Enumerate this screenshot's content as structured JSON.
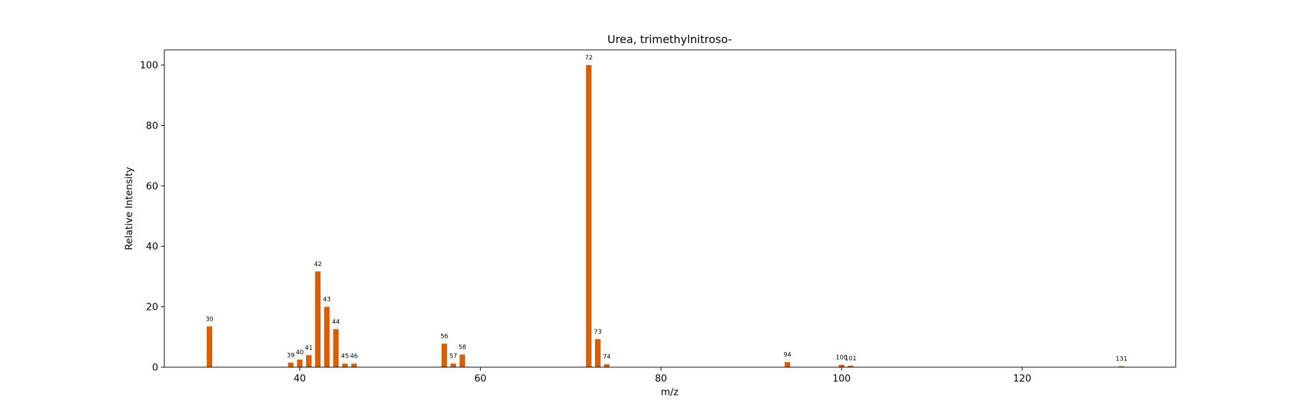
{
  "chart_data": {
    "type": "bar",
    "title": "Urea, trimethylnitroso-",
    "xlabel": "m/z",
    "ylabel": "Relative Intensity",
    "xlim": [
      25,
      137
    ],
    "ylim": [
      0,
      105
    ],
    "xticks": [
      40,
      60,
      80,
      100,
      120
    ],
    "yticks": [
      0,
      20,
      40,
      60,
      80,
      100
    ],
    "grid": false,
    "bar_color": "#d95f02",
    "series": [
      {
        "x": [
          30,
          39,
          40,
          41,
          42,
          43,
          44,
          45,
          46,
          56,
          57,
          58,
          72,
          73,
          74,
          94,
          100,
          101,
          131
        ],
        "values": [
          13.5,
          1.5,
          2.5,
          4,
          31.7,
          20,
          12.6,
          1.2,
          1.2,
          7.8,
          1.2,
          4.2,
          100,
          9.3,
          1,
          1.7,
          0.8,
          0.5,
          0.3
        ],
        "labels": [
          "30",
          "39",
          "40",
          "41",
          "42",
          "43",
          "44",
          "45",
          "46",
          "56",
          "57",
          "58",
          "72",
          "73",
          "74",
          "94",
          "100",
          "101",
          "131"
        ]
      }
    ]
  }
}
